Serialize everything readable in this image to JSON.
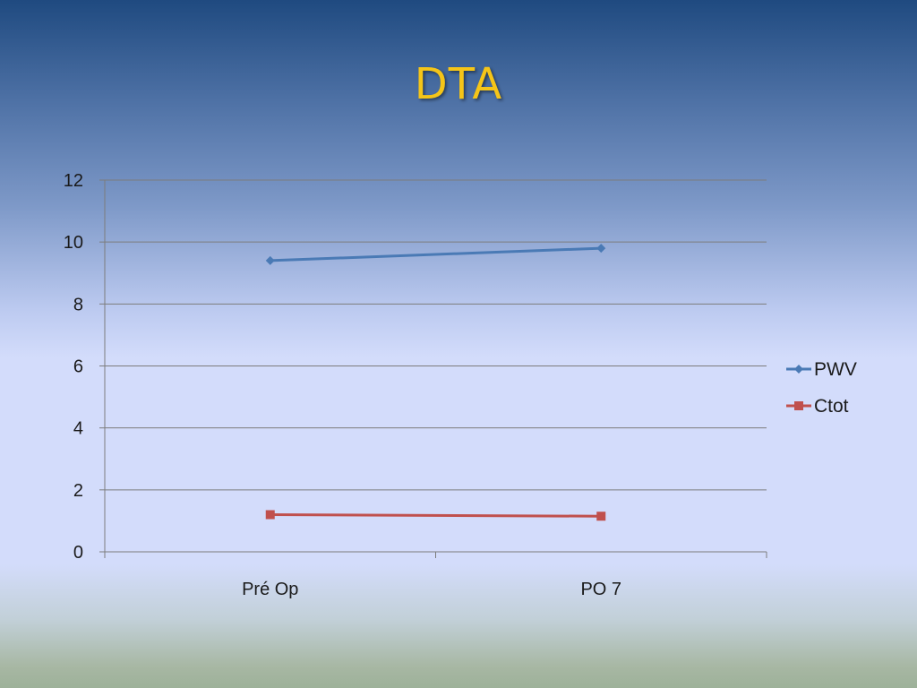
{
  "slide": {
    "title": "DTA"
  },
  "chart_data": {
    "type": "line",
    "title": "DTA",
    "categories": [
      "Pré Op",
      "PO 7"
    ],
    "series": [
      {
        "name": "PWV",
        "values": [
          9.4,
          9.8
        ],
        "color": "#4a7ab5",
        "marker": "diamond"
      },
      {
        "name": "Ctot",
        "values": [
          1.2,
          1.15
        ],
        "color": "#c0504d",
        "marker": "square"
      }
    ],
    "ylim": [
      0,
      12
    ],
    "yticks": [
      0,
      2,
      4,
      6,
      8,
      10,
      12
    ],
    "grid": true,
    "legend_position": "right"
  }
}
